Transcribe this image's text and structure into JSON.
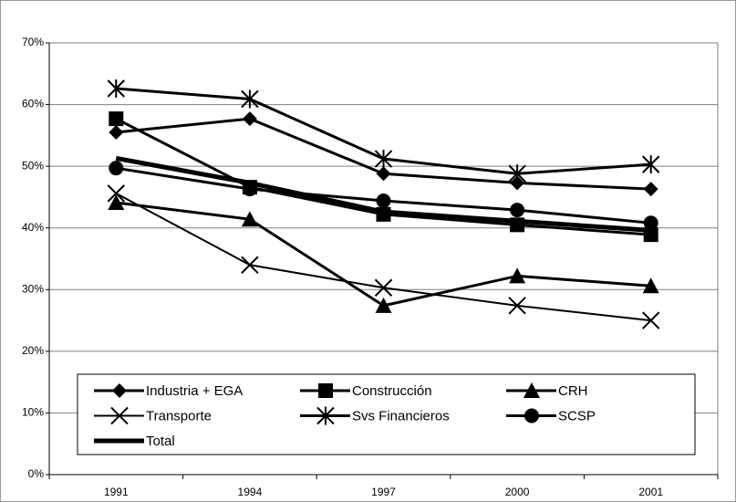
{
  "chart_data": {
    "type": "line",
    "categories": [
      "1991",
      "1994",
      "1997",
      "2000",
      "2001"
    ],
    "ylim": [
      0,
      70
    ],
    "yticks": [
      {
        "value": 0,
        "label": "0%"
      },
      {
        "value": 10,
        "label": "10%"
      },
      {
        "value": 20,
        "label": "20%"
      },
      {
        "value": 30,
        "label": "30%"
      },
      {
        "value": 40,
        "label": "40%"
      },
      {
        "value": 50,
        "label": "50%"
      },
      {
        "value": 60,
        "label": "60%"
      },
      {
        "value": 70,
        "label": "70%"
      }
    ],
    "grid": true,
    "legend": "bottom",
    "series": [
      {
        "name": "Industria + EGA",
        "color": "#000000",
        "marker": "diamond",
        "line_width": 3,
        "values": [
          55.5,
          57.7,
          48.8,
          47.3,
          46.3
        ]
      },
      {
        "name": "Construcción",
        "color": "#000000",
        "marker": "square",
        "line_width": 3,
        "values": [
          57.7,
          46.6,
          42.2,
          40.5,
          38.9
        ]
      },
      {
        "name": "CRH",
        "color": "#000000",
        "marker": "triangle",
        "line_width": 3,
        "values": [
          44.1,
          41.4,
          27.4,
          32.2,
          30.6
        ]
      },
      {
        "name": "Transporte",
        "color": "#000000",
        "marker": "x",
        "line_width": 2,
        "values": [
          45.6,
          34.0,
          30.3,
          27.4,
          25.0
        ]
      },
      {
        "name": "Svs Financieros",
        "color": "#000000",
        "marker": "asterisk",
        "line_width": 3,
        "values": [
          62.6,
          60.9,
          51.2,
          48.8,
          50.3
        ]
      },
      {
        "name": "SCSP",
        "color": "#000000",
        "marker": "circle",
        "line_width": 3,
        "values": [
          49.7,
          46.3,
          44.4,
          42.9,
          40.8
        ]
      },
      {
        "name": "Total",
        "color": "#000000",
        "marker": "none",
        "line_width": 5,
        "values": [
          51.3,
          47.3,
          42.6,
          41.1,
          39.6
        ]
      }
    ]
  }
}
